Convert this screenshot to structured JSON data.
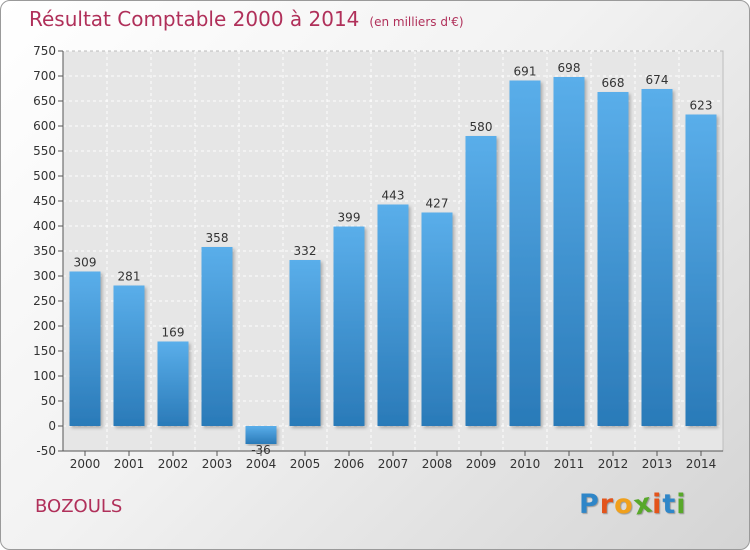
{
  "header": {
    "title": "Résultat Comptable 2000 à 2014",
    "subtitle": "(en milliers d'€)"
  },
  "footer": {
    "commune": "BOZOULS",
    "logo_letters": [
      "P",
      "r",
      "o",
      "x",
      "i",
      "t",
      "i"
    ],
    "logo_colors": [
      "#2f86c8",
      "#e3541b",
      "#f0a01c",
      "#58a82a",
      "#e3541b",
      "#2f86c8",
      "#58a82a"
    ]
  },
  "colors": {
    "bar_top": "#5aaeea",
    "bar_bottom": "#2a7ab8",
    "grid": "#ffffff",
    "accent": "#b0305a"
  },
  "chart_data": {
    "type": "bar",
    "title": "Résultat Comptable 2000 à 2014",
    "subtitle": "(en milliers d'€)",
    "categories": [
      "2000",
      "2001",
      "2002",
      "2003",
      "2004",
      "2005",
      "2006",
      "2007",
      "2008",
      "2009",
      "2010",
      "2011",
      "2012",
      "2013",
      "2014"
    ],
    "values": [
      309,
      281,
      169,
      358,
      -36,
      332,
      399,
      443,
      427,
      580,
      691,
      698,
      668,
      674,
      623
    ],
    "value_labels": [
      "309",
      "281",
      "169",
      "358",
      "-36",
      "332",
      "399",
      "443",
      "427",
      "580",
      "691",
      "698",
      "668",
      "674",
      "623"
    ],
    "y_ticks": [
      "750",
      "700",
      "650",
      "600",
      "550",
      "500",
      "450",
      "400",
      "350",
      "300",
      "250",
      "200",
      "150",
      "100",
      "50",
      "0",
      "-50"
    ],
    "ylim": [
      -50,
      750
    ],
    "grid": true,
    "xlabel": "",
    "ylabel": ""
  }
}
